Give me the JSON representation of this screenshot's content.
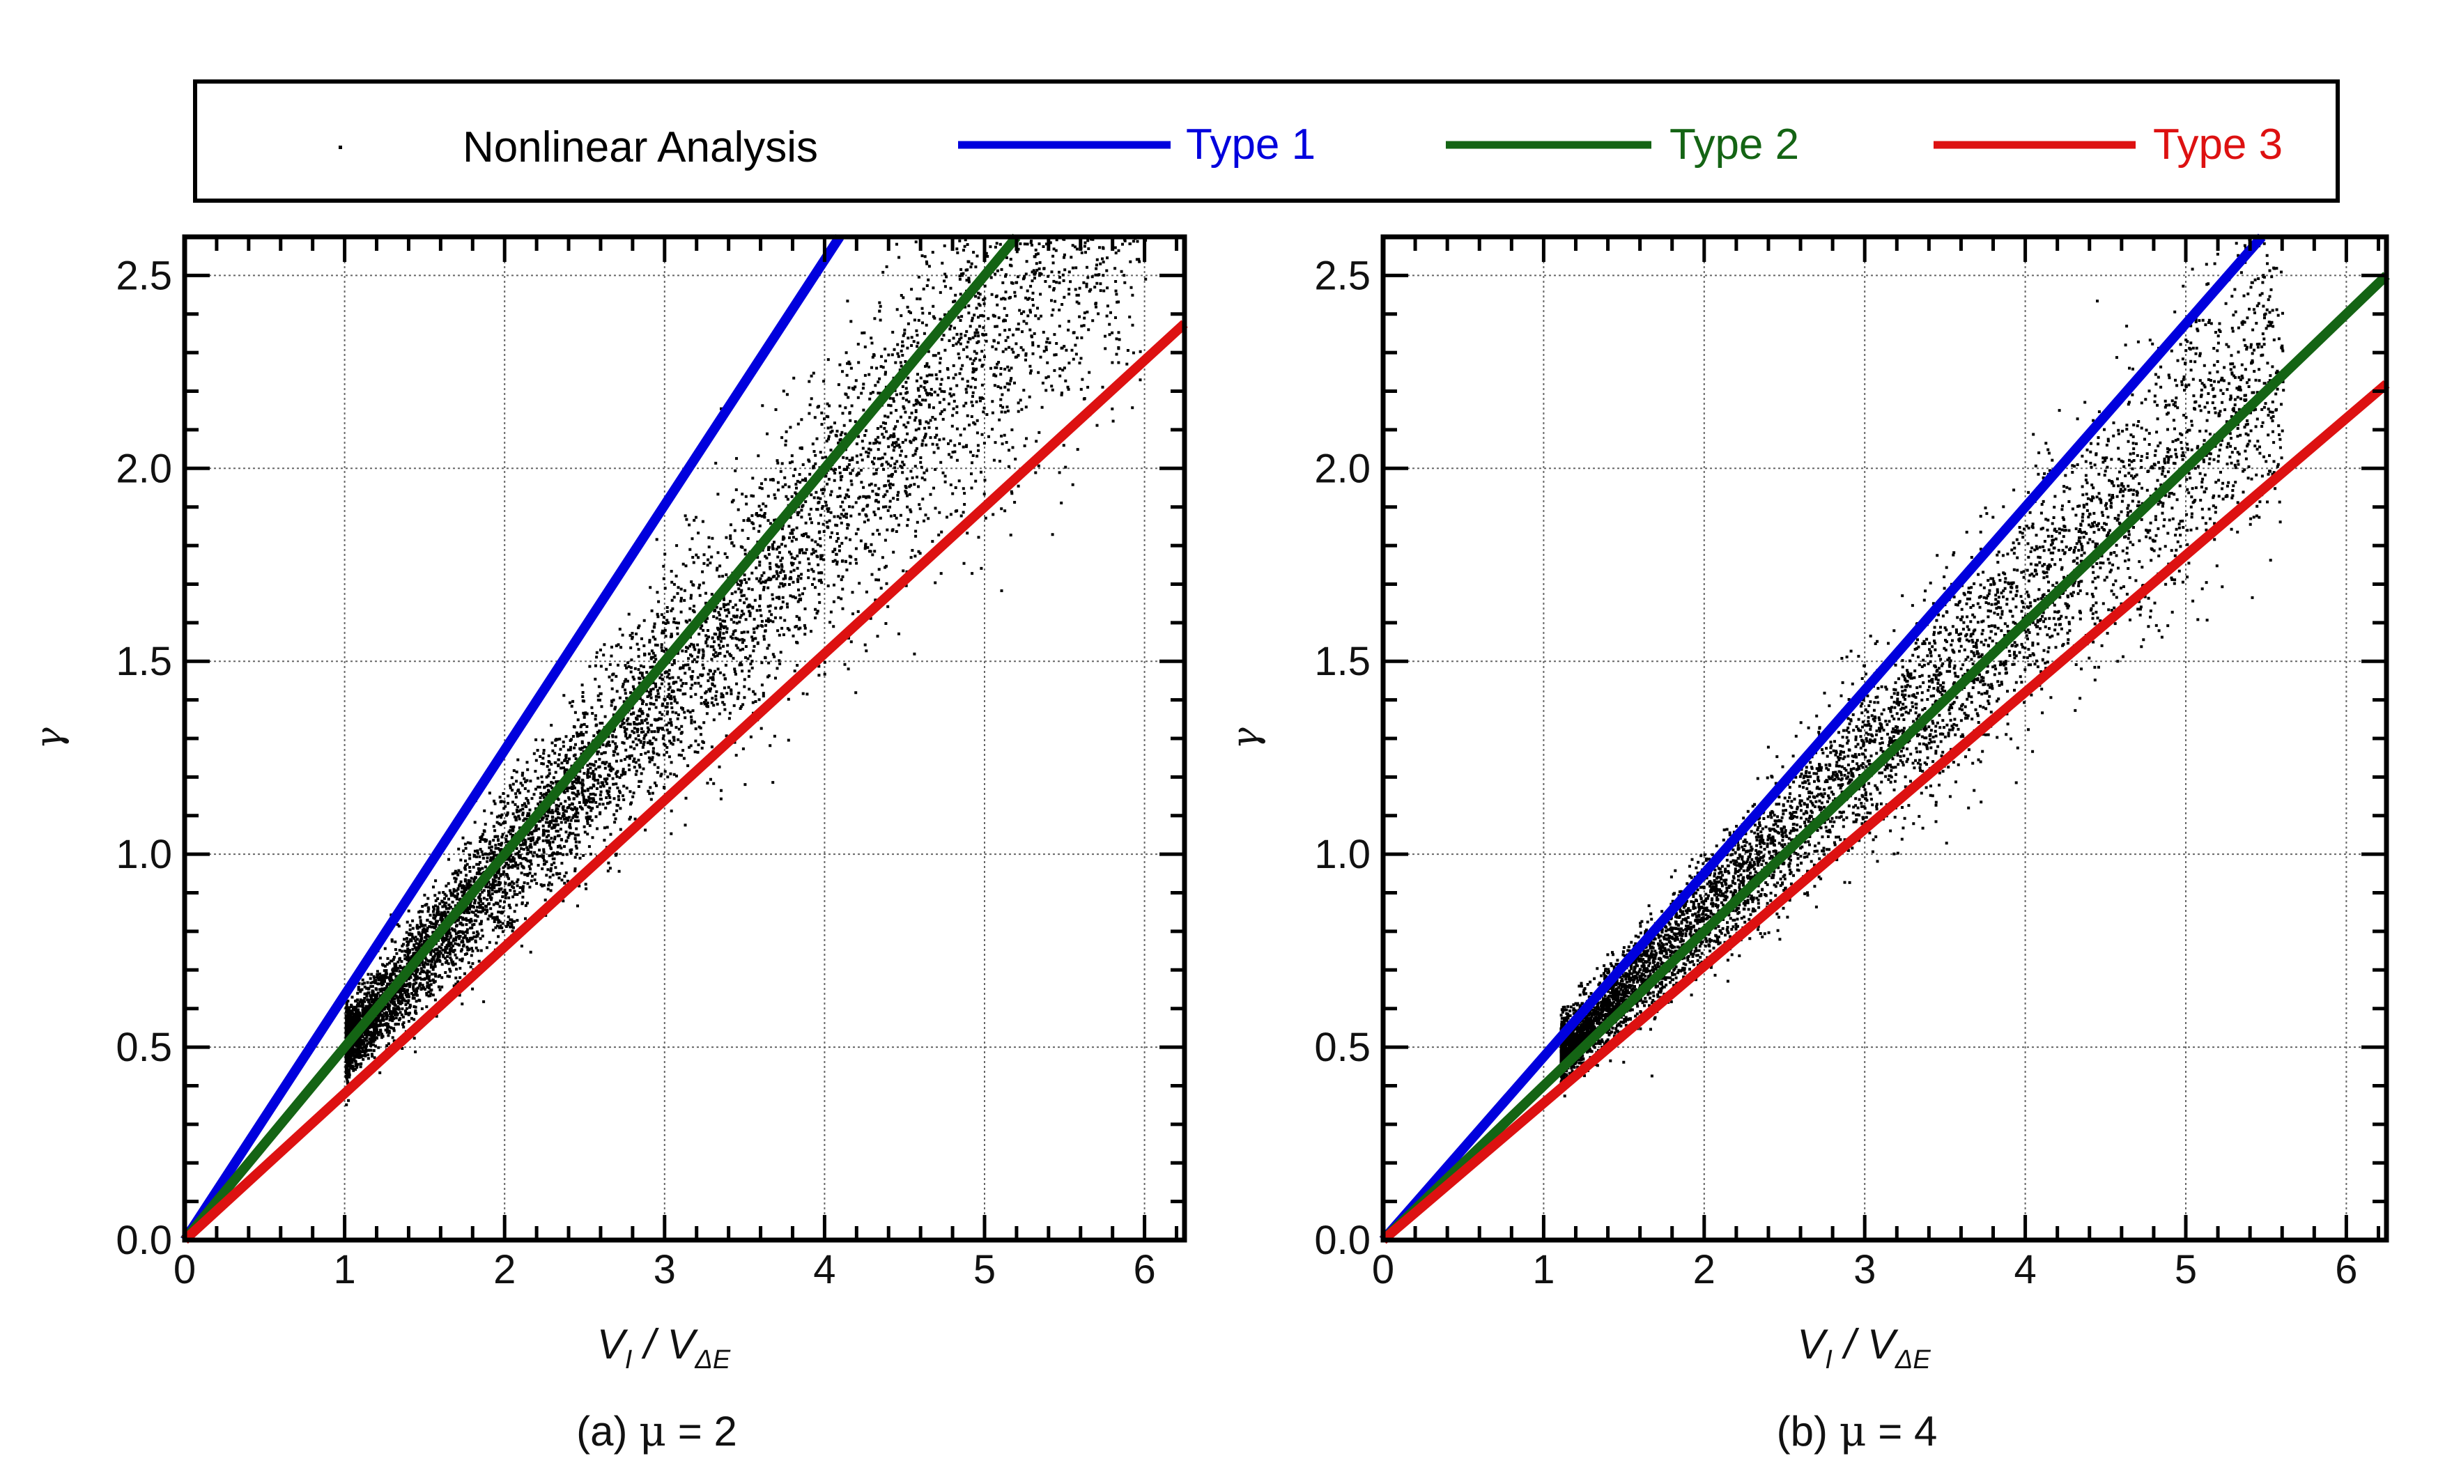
{
  "legend": {
    "items": [
      {
        "label": "Nonlinear Analysis",
        "kind": "dots",
        "color": "#000000"
      },
      {
        "label": "Type 1",
        "kind": "line",
        "color": "#0000dd"
      },
      {
        "label": "Type 2",
        "kind": "line",
        "color": "#146414"
      },
      {
        "label": "Type 3",
        "kind": "line",
        "color": "#dd1111"
      }
    ]
  },
  "chart_data": [
    {
      "type": "scatter",
      "caption_prefix": "(a) ",
      "caption_symbol": "μ",
      "caption_suffix": " = 2",
      "xlabel_main": "V",
      "xlabel_sub1": "I",
      "xlabel_sep": " / V",
      "xlabel_sub2": "ΔE",
      "ylabel": "γ",
      "xlim": [
        0,
        6.25
      ],
      "ylim": [
        0,
        2.6
      ],
      "xticks": [
        0,
        1,
        2,
        3,
        4,
        5,
        6
      ],
      "xtick_labels": [
        "0",
        "1",
        "2",
        "3",
        "4",
        "5",
        "6"
      ],
      "yticks": [
        0,
        0.5,
        1.0,
        1.5,
        2.0,
        2.5
      ],
      "ytick_labels": [
        "0.0",
        "0.5",
        "1.0",
        "1.5",
        "2.0",
        "2.5"
      ],
      "grid": true,
      "series": [
        {
          "name": "Type 1",
          "kind": "line",
          "slope": 0.635,
          "color": "#0000dd"
        },
        {
          "name": "Type 2",
          "kind": "line",
          "slope": 0.5,
          "color": "#146414"
        },
        {
          "name": "Type 3",
          "kind": "line",
          "slope": 0.38,
          "color": "#dd1111"
        },
        {
          "name": "Nonlinear Analysis",
          "kind": "scatter_cloud",
          "n_points": 7000,
          "x_range": [
            1.0,
            6.0
          ],
          "y_ratio_center": 0.46,
          "y_ratio_spread": 0.05,
          "note": "approximate cloud of points between Type 1 and Type 3 lines"
        }
      ]
    },
    {
      "type": "scatter",
      "caption_prefix": "(b) ",
      "caption_symbol": "μ",
      "caption_suffix": " = 4",
      "xlabel_main": "V",
      "xlabel_sub1": "I",
      "xlabel_sep": " / V",
      "xlabel_sub2": "ΔE",
      "ylabel": "γ",
      "xlim": [
        0,
        6.25
      ],
      "ylim": [
        0,
        2.6
      ],
      "xticks": [
        0,
        1,
        2,
        3,
        4,
        5,
        6
      ],
      "xtick_labels": [
        "0",
        "1",
        "2",
        "3",
        "4",
        "5",
        "6"
      ],
      "yticks": [
        0,
        0.5,
        1.0,
        1.5,
        2.0,
        2.5
      ],
      "ytick_labels": [
        "0.0",
        "0.5",
        "1.0",
        "1.5",
        "2.0",
        "2.5"
      ],
      "grid": true,
      "series": [
        {
          "name": "Type 1",
          "kind": "line",
          "slope": 0.475,
          "color": "#0000dd"
        },
        {
          "name": "Type 2",
          "kind": "line",
          "slope": 0.4,
          "color": "#146414"
        },
        {
          "name": "Type 3",
          "kind": "line",
          "slope": 0.355,
          "color": "#dd1111"
        },
        {
          "name": "Nonlinear Analysis",
          "kind": "scatter_cloud",
          "n_points": 6000,
          "x_range": [
            1.1,
            5.6
          ],
          "y_ratio_center": 0.4,
          "y_ratio_spread": 0.04,
          "note": "approximate cloud of points between Type 1 and Type 3 lines"
        }
      ]
    }
  ]
}
